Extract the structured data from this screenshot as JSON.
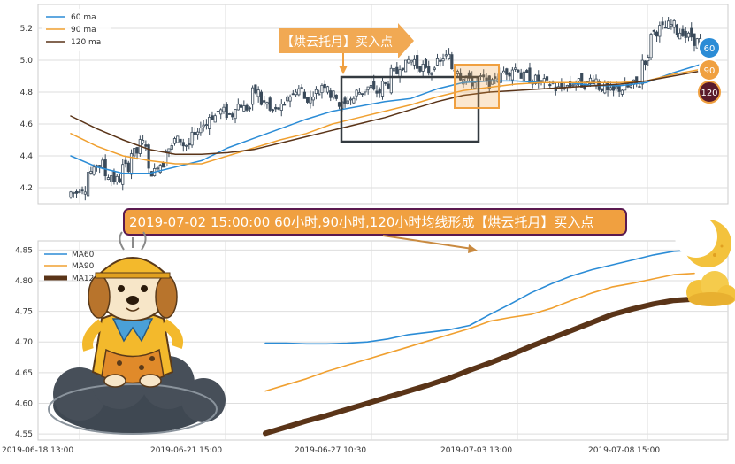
{
  "chart_data": [
    {
      "type": "line",
      "panel": "top",
      "ylim": [
        4.1,
        5.35
      ],
      "yticks": [
        "4.2",
        "4.4",
        "4.6",
        "4.8",
        "5.0",
        "5.2"
      ],
      "ytick_values": [
        4.2,
        4.4,
        4.6,
        4.8,
        5.0,
        5.2
      ],
      "grid": true,
      "legend_position": "top-left",
      "legend": [
        "60 ma",
        "90 ma",
        "120 ma"
      ],
      "series": [
        {
          "name": "60 ma",
          "color": "#2b8cd6",
          "values": [
            4.4,
            4.33,
            4.29,
            4.29,
            4.33,
            4.37,
            4.45,
            4.51,
            4.57,
            4.63,
            4.68,
            4.71,
            4.74,
            4.76,
            4.82,
            4.86,
            4.87,
            4.87,
            4.86,
            4.86,
            4.84,
            4.84,
            4.86,
            4.92,
            4.97
          ]
        },
        {
          "name": "90 ma",
          "color": "#f0a030",
          "values": [
            4.54,
            4.46,
            4.4,
            4.37,
            4.35,
            4.35,
            4.4,
            4.45,
            4.5,
            4.54,
            4.6,
            4.64,
            4.68,
            4.72,
            4.77,
            4.81,
            4.83,
            4.85,
            4.86,
            4.86,
            4.86,
            4.86,
            4.87,
            4.91,
            4.94
          ]
        },
        {
          "name": "120 ma",
          "color": "#5a3418",
          "values": [
            4.65,
            4.57,
            4.5,
            4.44,
            4.41,
            4.41,
            4.42,
            4.44,
            4.48,
            4.52,
            4.56,
            4.6,
            4.64,
            4.69,
            4.74,
            4.78,
            4.8,
            4.81,
            4.82,
            4.83,
            4.84,
            4.85,
            4.87,
            4.9,
            4.93
          ]
        }
      ],
      "candles_close": [
        4.17,
        4.2,
        4.3,
        4.35,
        4.28,
        4.25,
        4.33,
        4.42,
        4.48,
        4.3,
        4.35,
        4.45,
        4.5,
        4.47,
        4.52,
        4.6,
        4.65,
        4.68,
        4.66,
        4.72,
        4.7,
        4.8,
        4.73,
        4.68,
        4.7,
        4.78,
        4.82,
        4.76,
        4.8,
        4.85,
        4.78,
        4.72,
        4.76,
        4.8,
        4.83,
        4.8,
        4.85,
        4.92,
        4.97,
        5.0,
        4.96,
        4.93,
        4.98,
        5.02,
        4.95,
        4.9,
        4.86,
        4.88,
        4.85,
        4.9,
        4.93,
        4.95,
        4.9,
        4.88,
        4.86,
        4.85,
        4.82,
        4.84,
        4.86,
        4.85,
        4.88,
        4.83,
        4.8,
        4.82,
        4.83,
        4.85,
        5.0,
        5.18,
        5.2,
        5.22,
        5.18,
        5.15,
        5.12
      ],
      "annotations": {
        "arrow_label": "【烘云托月】买入点",
        "badges": [
          "60",
          "90",
          "120"
        ]
      }
    },
    {
      "type": "line",
      "panel": "bottom",
      "ylim": [
        4.54,
        4.865
      ],
      "yticks": [
        "4.55",
        "4.60",
        "4.65",
        "4.70",
        "4.75",
        "4.80",
        "4.85"
      ],
      "ytick_values": [
        4.55,
        4.6,
        4.65,
        4.7,
        4.75,
        4.8,
        4.85
      ],
      "xticks": [
        "2019-06-18 13:00",
        "2019-06-21 15:00",
        "2019-06-27 10:30",
        "2019-07-03 13:00",
        "2019-07-08 15:00"
      ],
      "grid": true,
      "legend_position": "top-left",
      "legend": [
        "MA60",
        "MA90",
        "MA120"
      ],
      "series": [
        {
          "name": "MA60",
          "color": "#2b8cd6",
          "values": [
            4.698,
            4.698,
            4.697,
            4.697,
            4.698,
            4.7,
            4.705,
            4.712,
            4.716,
            4.72,
            4.727,
            4.745,
            4.762,
            4.78,
            4.795,
            4.808,
            4.818,
            4.826,
            4.834,
            4.842,
            4.848,
            4.85
          ]
        },
        {
          "name": "MA90",
          "color": "#f0a030",
          "values": [
            4.62,
            4.63,
            4.64,
            4.652,
            4.662,
            4.672,
            4.682,
            4.692,
            4.702,
            4.712,
            4.722,
            4.734,
            4.74,
            4.745,
            4.755,
            4.768,
            4.78,
            4.79,
            4.796,
            4.803,
            4.81,
            4.812
          ]
        },
        {
          "name": "MA120",
          "color": "#5a3418",
          "values": [
            4.551,
            4.561,
            4.571,
            4.58,
            4.59,
            4.6,
            4.61,
            4.62,
            4.63,
            4.641,
            4.654,
            4.666,
            4.679,
            4.693,
            4.706,
            4.719,
            4.732,
            4.745,
            4.754,
            4.762,
            4.768,
            4.77
          ]
        }
      ]
    }
  ],
  "banner": {
    "text": "2019-07-02 15:00:00 60小时,90小时,120小时均线形成【烘云托月】买入点"
  },
  "colors": {
    "ma60": "#2b8cd6",
    "ma90": "#f0a030",
    "ma120": "#5a3418",
    "banner_fill": "#f0a040",
    "banner_border": "#5a1a50",
    "candles": "#3a4a5a"
  }
}
